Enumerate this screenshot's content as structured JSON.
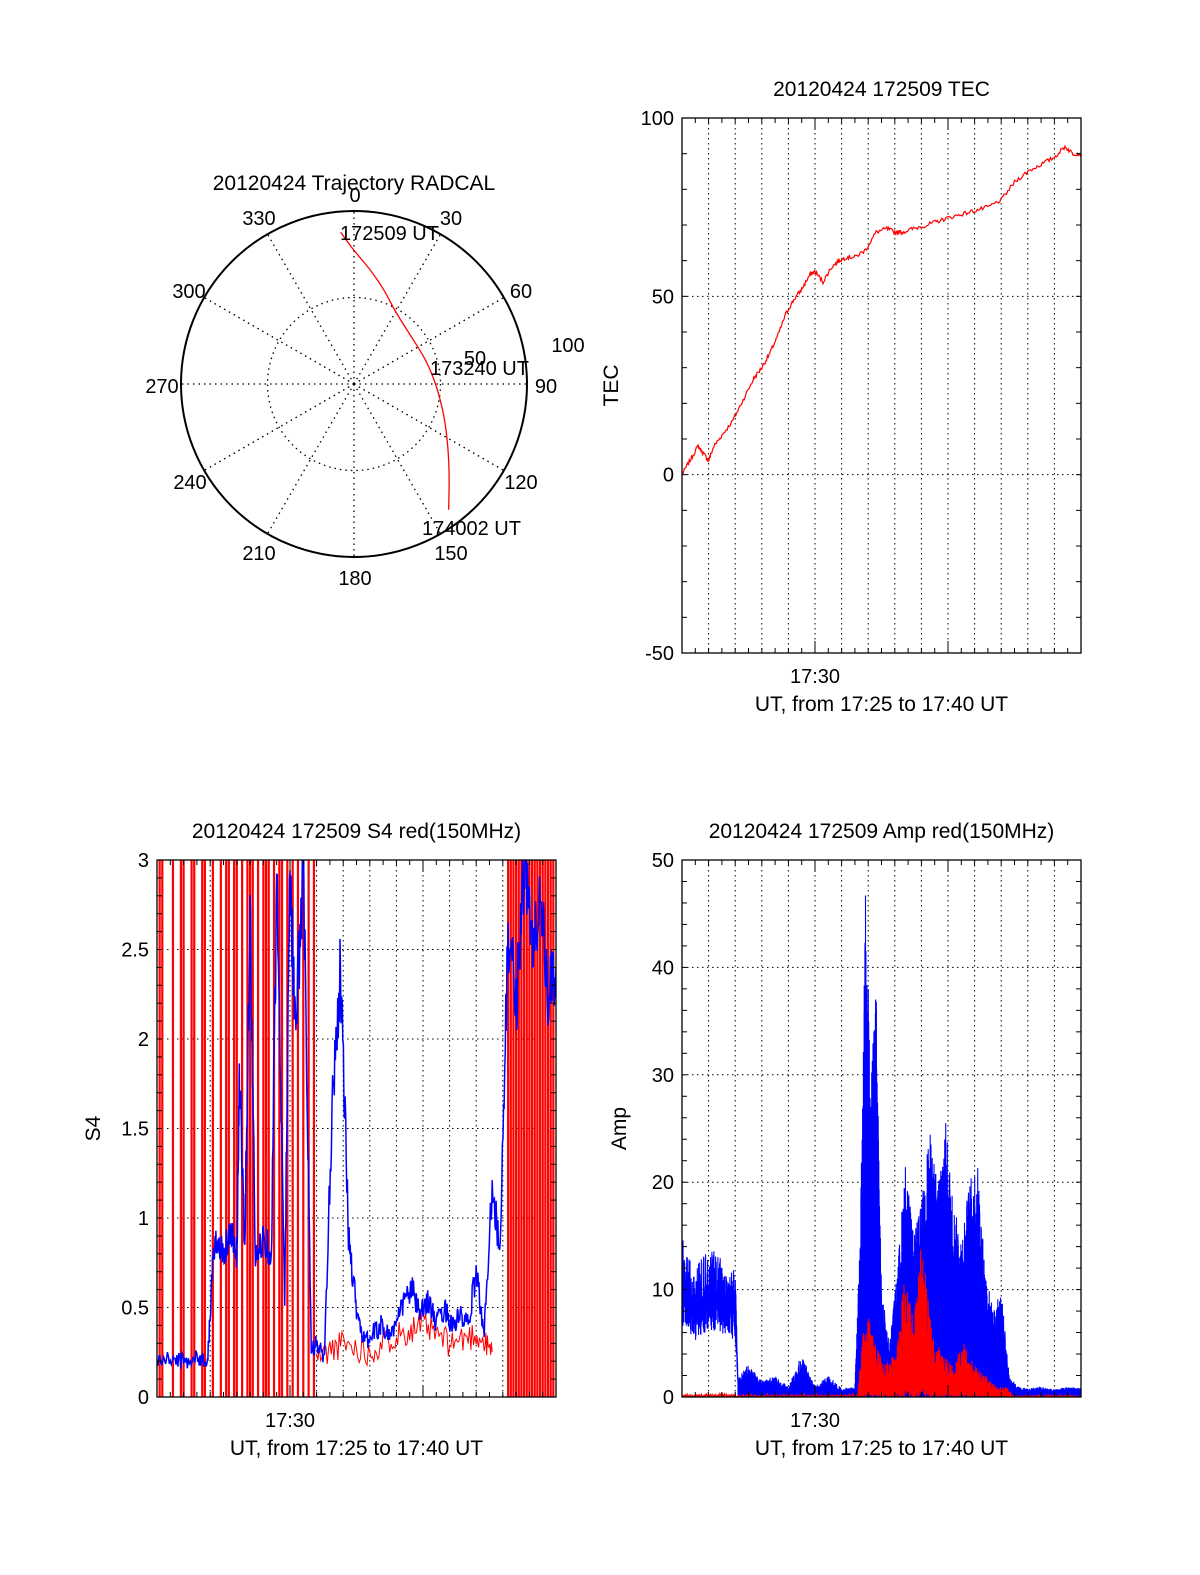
{
  "chart_data": [
    {
      "type": "polar",
      "title": "20120424 Trajectory RADCAL",
      "angle_labels": [
        "0",
        "30",
        "60",
        "90",
        "120",
        "150",
        "180",
        "210",
        "240",
        "270",
        "300",
        "330"
      ],
      "radius_labels": [
        "50",
        "100"
      ],
      "rlim": [
        0,
        100
      ],
      "grid": true,
      "series": [
        {
          "color": "#ff0000",
          "points": [
            {
              "azimuth": 355,
              "zenith": 88
            },
            {
              "azimuth": 0,
              "zenith": 77
            },
            {
              "azimuth": 8,
              "zenith": 67
            },
            {
              "azimuth": 18,
              "zenith": 57
            },
            {
              "azimuth": 30,
              "zenith": 48
            },
            {
              "azimuth": 50,
              "zenith": 43
            },
            {
              "azimuth": 72,
              "zenith": 44
            },
            {
              "azimuth": 92,
              "zenith": 48
            },
            {
              "azimuth": 112,
              "zenith": 57
            },
            {
              "azimuth": 130,
              "zenith": 72
            },
            {
              "azimuth": 143,
              "zenith": 91
            }
          ]
        }
      ],
      "annotations": [
        "172509 UT",
        "173240 UT",
        "174002 UT"
      ]
    },
    {
      "type": "line",
      "title": "20120424 172509 TEC",
      "xlabel": "UT, from 17:25 to 17:40 UT",
      "ylabel": "TEC",
      "xlim": [
        0,
        15
      ],
      "ylim": [
        -50,
        100
      ],
      "xticks": [
        {
          "value": 5,
          "label": "17:30"
        }
      ],
      "yticks": [
        -50,
        0,
        50,
        100
      ],
      "grid": true,
      "series": [
        {
          "color": "#ff0000",
          "x": [
            0,
            0.3,
            0.6,
            0.8,
            1.0,
            1.2,
            1.5,
            1.9,
            2.3,
            2.7,
            3.0,
            3.3,
            3.6,
            3.9,
            4.2,
            4.5,
            4.8,
            5.0,
            5.3,
            5.6,
            5.9,
            6.2,
            6.5,
            6.9,
            7.3,
            7.7,
            8.0,
            8.3,
            8.7,
            9.2,
            9.6,
            10.0,
            10.5,
            11.0,
            11.5,
            12.0,
            12.5,
            13.0,
            13.5,
            14.0,
            14.4,
            14.7,
            15.0
          ],
          "y": [
            0,
            4,
            8,
            6,
            4,
            8,
            11,
            15,
            21,
            27,
            30,
            34,
            39,
            45,
            49,
            52,
            56,
            57,
            54,
            58,
            60,
            61,
            61,
            63,
            68,
            69,
            68,
            68,
            69,
            70,
            71,
            72,
            73,
            74,
            75,
            77,
            82,
            85,
            87,
            89,
            92,
            90,
            90
          ]
        }
      ]
    },
    {
      "type": "line",
      "title": "20120424 172509 S4 red(150MHz)",
      "xlabel": "UT, from 17:25 to 17:40 UT",
      "ylabel": "S4",
      "xlim": [
        0,
        15
      ],
      "ylim": [
        0,
        3
      ],
      "xticks": [
        {
          "value": 5,
          "label": "17:30"
        }
      ],
      "yticks": [
        "0",
        "0.5",
        "1",
        "1.5",
        "2",
        "2.5",
        "3"
      ],
      "grid": true,
      "series": [
        {
          "color": "#0000ff",
          "x": [
            0,
            0.5,
            1.0,
            1.5,
            1.9,
            2.1,
            2.3,
            2.5,
            2.8,
            3.0,
            3.1,
            3.3,
            3.5,
            3.7,
            4.0,
            4.3,
            4.5,
            4.8,
            5.0,
            5.2,
            5.5,
            5.8,
            6.0,
            6.3,
            6.6,
            6.9,
            7.2,
            7.5,
            7.8,
            8.1,
            8.4,
            8.7,
            9.0,
            9.3,
            9.6,
            9.9,
            10.2,
            10.5,
            10.8,
            11.1,
            11.4,
            11.7,
            12.0,
            12.3,
            12.6,
            12.9,
            13.2,
            13.5,
            13.8,
            14.1,
            14.4,
            14.7,
            15.0
          ],
          "y": [
            0.2,
            0.21,
            0.2,
            0.22,
            0.2,
            0.75,
            0.9,
            0.8,
            0.95,
            0.75,
            1.8,
            0.85,
            2.7,
            0.75,
            0.9,
            0.8,
            2.9,
            0.55,
            3.0,
            2.0,
            3.0,
            0.25,
            0.3,
            0.22,
            1.7,
            2.4,
            0.9,
            0.5,
            0.3,
            0.35,
            0.4,
            0.35,
            0.4,
            0.55,
            0.6,
            0.45,
            0.55,
            0.4,
            0.5,
            0.4,
            0.45,
            0.4,
            0.7,
            0.35,
            1.2,
            0.8,
            2.6,
            2.2,
            3.0,
            2.5,
            2.8,
            2.2,
            2.4
          ]
        },
        {
          "color": "#ff0000",
          "x": [
            0.1,
            0.2,
            0.6,
            0.9,
            1.0,
            1.3,
            1.4,
            1.7,
            1.8,
            2.1,
            2.4,
            2.6,
            2.7,
            2.9,
            3.0,
            3.2,
            3.4,
            3.5,
            3.6,
            3.8,
            4.0,
            4.1,
            4.2,
            4.4,
            4.6,
            4.7,
            4.9,
            5.1,
            5.3,
            5.5,
            5.7,
            5.9,
            13.2,
            13.3,
            13.4,
            13.5,
            13.6,
            13.7,
            13.8,
            13.9,
            14.0,
            14.1,
            14.2,
            14.3,
            14.4,
            14.5,
            14.6,
            14.7,
            14.8,
            14.9
          ],
          "label_note": "vertical spikes spanning 0 to 3"
        }
      ]
    },
    {
      "type": "line",
      "title": "20120424 172509 Amp red(150MHz)",
      "xlabel": "UT, from 17:25 to 17:40 UT",
      "ylabel": "Amp",
      "xlim": [
        0,
        15
      ],
      "ylim": [
        0,
        50
      ],
      "xticks": [
        {
          "value": 5,
          "label": "17:30"
        }
      ],
      "yticks": [
        0,
        10,
        20,
        30,
        40,
        50
      ],
      "grid": true,
      "series": [
        {
          "color": "#0000ff",
          "x": [
            0,
            0.5,
            1.0,
            1.5,
            2.0,
            2.1,
            2.5,
            3.0,
            3.5,
            4.0,
            4.5,
            5.0,
            5.5,
            6.0,
            6.5,
            6.7,
            6.9,
            7.1,
            7.3,
            7.5,
            7.8,
            8.1,
            8.4,
            8.7,
            9.0,
            9.3,
            9.6,
            9.9,
            10.2,
            10.5,
            10.8,
            11.1,
            11.4,
            11.7,
            12.0,
            12.3,
            12.6,
            13.0,
            13.5,
            14.0,
            14.5,
            15.0
          ],
          "y": [
            15,
            12,
            14,
            13,
            12,
            2,
            3,
            1.5,
            2,
            1,
            4,
            1,
            2,
            0.8,
            1,
            15,
            47,
            30,
            38,
            10,
            5,
            12,
            22,
            15,
            18,
            25,
            20,
            26,
            18,
            15,
            20,
            22,
            12,
            8,
            10,
            2,
            1,
            0.8,
            1,
            0.7,
            1,
            0.8
          ]
        },
        {
          "color": "#ff0000",
          "x": [
            0,
            2.0,
            6.6,
            6.8,
            7.0,
            7.3,
            7.6,
            8.0,
            8.4,
            8.7,
            9.0,
            9.4,
            9.8,
            10.2,
            10.6,
            11.0,
            11.4,
            11.8,
            12.2,
            12.4,
            15.0
          ],
          "y": [
            0.3,
            0.3,
            0.3,
            6,
            8,
            5,
            3,
            4,
            12,
            7,
            15,
            6,
            4,
            3,
            5,
            3,
            2,
            1,
            1,
            0.2,
            0.2
          ]
        }
      ]
    }
  ]
}
